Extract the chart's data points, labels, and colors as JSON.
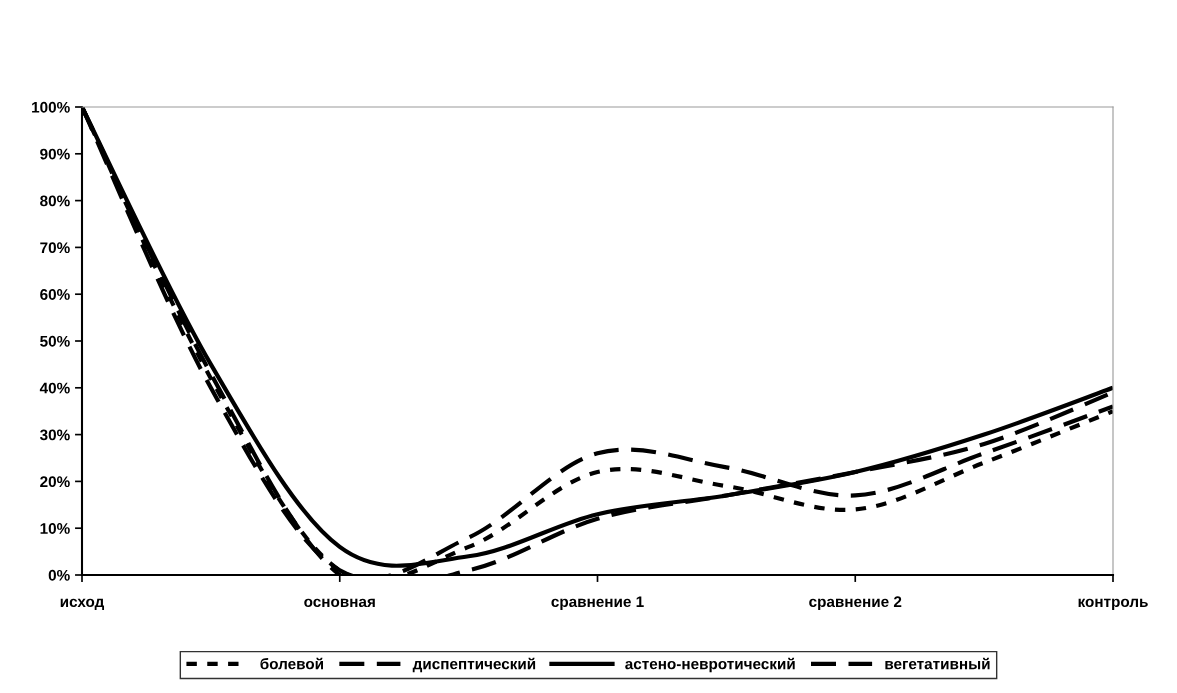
{
  "chart_data": {
    "type": "line",
    "categories": [
      "исход",
      null,
      "основная",
      null,
      "сравнение 1",
      null,
      "сравнение 2",
      null,
      "контроль"
    ],
    "series": [
      {
        "name": "болевой",
        "color": "#000000",
        "line_style": "dotted",
        "values": [
          100,
          42,
          1,
          6,
          22,
          19,
          14,
          24,
          35
        ]
      },
      {
        "name": "диспептический",
        "color": "#000000",
        "line_style": "dashed",
        "values": [
          100,
          40,
          1,
          8,
          26,
          23,
          17,
          26,
          36
        ]
      },
      {
        "name": "астено-невротический",
        "color": "#000000",
        "line_style": "solid",
        "values": [
          100,
          45,
          6,
          4,
          13,
          17,
          22,
          30,
          40
        ]
      },
      {
        "name": "вегетативный",
        "color": "#000000",
        "line_style": "dashed",
        "values": [
          100,
          43,
          0,
          1,
          12,
          17,
          22,
          28,
          39
        ]
      }
    ],
    "ylim": [
      0,
      100
    ],
    "yticks": [
      {
        "value": 0,
        "label": "0%"
      },
      {
        "value": 10,
        "label": "10%"
      },
      {
        "value": 20,
        "label": "20%"
      },
      {
        "value": 30,
        "label": "30%"
      },
      {
        "value": 40,
        "label": "40%"
      },
      {
        "value": 50,
        "label": "50%"
      },
      {
        "value": 60,
        "label": "60%"
      },
      {
        "value": 70,
        "label": "70%"
      },
      {
        "value": 80,
        "label": "80%"
      },
      {
        "value": 90,
        "label": "90%"
      },
      {
        "value": 100,
        "label": "100%"
      }
    ],
    "grid": false,
    "legend": "bottom",
    "marker": "none"
  }
}
